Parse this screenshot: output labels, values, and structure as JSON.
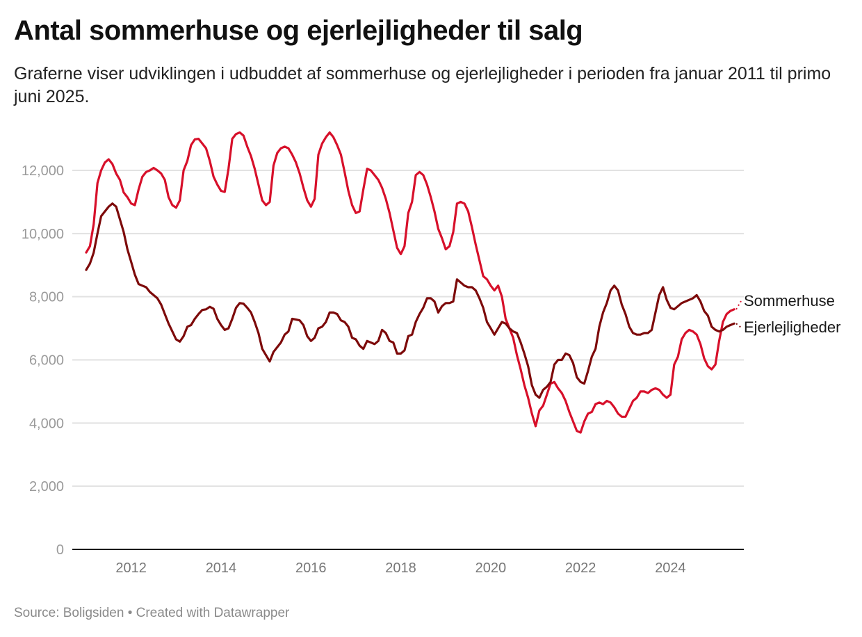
{
  "header": {
    "title": "Antal sommerhuse og ejerlejligheder til salg",
    "subtitle": "Graferne viser udviklingen i udbuddet af sommerhuse og ejerlejligheder i perioden fra januar 2011 til primo juni 2025."
  },
  "footer": {
    "source_text": "Source: Boligsiden • Created with Datawrapper"
  },
  "chart_data": {
    "type": "line",
    "title": "Antal sommerhuse og ejerlejligheder til salg",
    "xlabel": "",
    "ylabel": "",
    "x_start": "2011-01",
    "x_end": "2025-06",
    "x_step": "month",
    "xlim": [
      2011.0,
      2025.45
    ],
    "ylim": [
      0,
      13000
    ],
    "y_ticks": [
      0,
      2000,
      4000,
      6000,
      8000,
      10000,
      12000
    ],
    "y_tick_labels": [
      "0",
      "2,000",
      "4,000",
      "6,000",
      "8,000",
      "10,000",
      "12,000"
    ],
    "x_ticks": [
      2012,
      2014,
      2016,
      2018,
      2020,
      2022,
      2024
    ],
    "x_tick_labels": [
      "2012",
      "2014",
      "2016",
      "2018",
      "2020",
      "2022",
      "2024"
    ],
    "grid": "horizontal",
    "legend": "direct-labels-right",
    "series": [
      {
        "name": "Sommerhuse",
        "color": "#d7102a",
        "values": [
          9400,
          9600,
          10300,
          11600,
          12000,
          12250,
          12350,
          12200,
          11900,
          11700,
          11300,
          11150,
          10950,
          10900,
          11400,
          11800,
          11950,
          12000,
          12080,
          12000,
          11900,
          11700,
          11150,
          10900,
          10820,
          11050,
          12000,
          12300,
          12800,
          12980,
          13000,
          12850,
          12700,
          12300,
          11800,
          11550,
          11350,
          11320,
          12050,
          13000,
          13150,
          13200,
          13100,
          12750,
          12450,
          12050,
          11550,
          11050,
          10900,
          11000,
          12150,
          12550,
          12700,
          12750,
          12700,
          12500,
          12250,
          11900,
          11450,
          11050,
          10850,
          11100,
          12500,
          12850,
          13050,
          13200,
          13050,
          12800,
          12500,
          11950,
          11350,
          10900,
          10650,
          10700,
          11400,
          12050,
          12000,
          11850,
          11700,
          11450,
          11100,
          10650,
          10100,
          9550,
          9350,
          9600,
          10650,
          11000,
          11850,
          11950,
          11850,
          11550,
          11150,
          10700,
          10150,
          9850,
          9500,
          9600,
          10050,
          10950,
          11000,
          10950,
          10700,
          10200,
          9650,
          9150,
          8650,
          8550,
          8350,
          8200,
          8350,
          8000,
          7300,
          7000,
          6700,
          6150,
          5700,
          5200,
          4800,
          4300,
          3900,
          4400,
          4550,
          4900,
          5250,
          5300,
          5100,
          4950,
          4700,
          4350,
          4050,
          3750,
          3700,
          4050,
          4300,
          4350,
          4600,
          4650,
          4600,
          4700,
          4650,
          4500,
          4300,
          4200,
          4200,
          4450,
          4700,
          4800,
          5000,
          5000,
          4950,
          5050,
          5100,
          5050,
          4900,
          4800,
          4900,
          5850,
          6100,
          6650,
          6850,
          6950,
          6900,
          6800,
          6500,
          6050,
          5800,
          5700,
          5850,
          6600,
          7200,
          7450,
          7550,
          7600
        ]
      },
      {
        "name": "Ejerlejligheder",
        "color": "#7d0a0a",
        "values": [
          8850,
          9050,
          9400,
          10000,
          10550,
          10700,
          10850,
          10950,
          10850,
          10450,
          10050,
          9500,
          9100,
          8700,
          8400,
          8350,
          8300,
          8150,
          8050,
          7950,
          7750,
          7450,
          7150,
          6900,
          6650,
          6580,
          6750,
          7050,
          7100,
          7300,
          7450,
          7580,
          7600,
          7680,
          7620,
          7300,
          7100,
          6950,
          7000,
          7300,
          7650,
          7800,
          7780,
          7650,
          7500,
          7200,
          6850,
          6350,
          6150,
          5950,
          6250,
          6400,
          6550,
          6800,
          6900,
          7300,
          7280,
          7250,
          7100,
          6750,
          6600,
          6700,
          7000,
          7050,
          7200,
          7500,
          7500,
          7450,
          7250,
          7200,
          7050,
          6700,
          6650,
          6450,
          6350,
          6600,
          6550,
          6500,
          6600,
          6950,
          6850,
          6600,
          6550,
          6200,
          6200,
          6300,
          6750,
          6800,
          7200,
          7450,
          7650,
          7950,
          7950,
          7850,
          7500,
          7700,
          7800,
          7800,
          7850,
          8550,
          8450,
          8350,
          8300,
          8300,
          8200,
          7950,
          7650,
          7200,
          7000,
          6800,
          7000,
          7200,
          7150,
          7000,
          6900,
          6850,
          6550,
          6200,
          5800,
          5200,
          4900,
          4800,
          5050,
          5150,
          5300,
          5850,
          6000,
          6000,
          6200,
          6150,
          5900,
          5450,
          5300,
          5250,
          5650,
          6100,
          6350,
          7050,
          7500,
          7800,
          8200,
          8350,
          8200,
          7750,
          7450,
          7050,
          6850,
          6800,
          6800,
          6850,
          6850,
          6950,
          7500,
          8050,
          8300,
          7900,
          7650,
          7600,
          7700,
          7800,
          7850,
          7900,
          7950,
          8050,
          7850,
          7550,
          7400,
          7050,
          6950,
          6900,
          6950,
          7050,
          7100,
          7150
        ]
      }
    ]
  }
}
